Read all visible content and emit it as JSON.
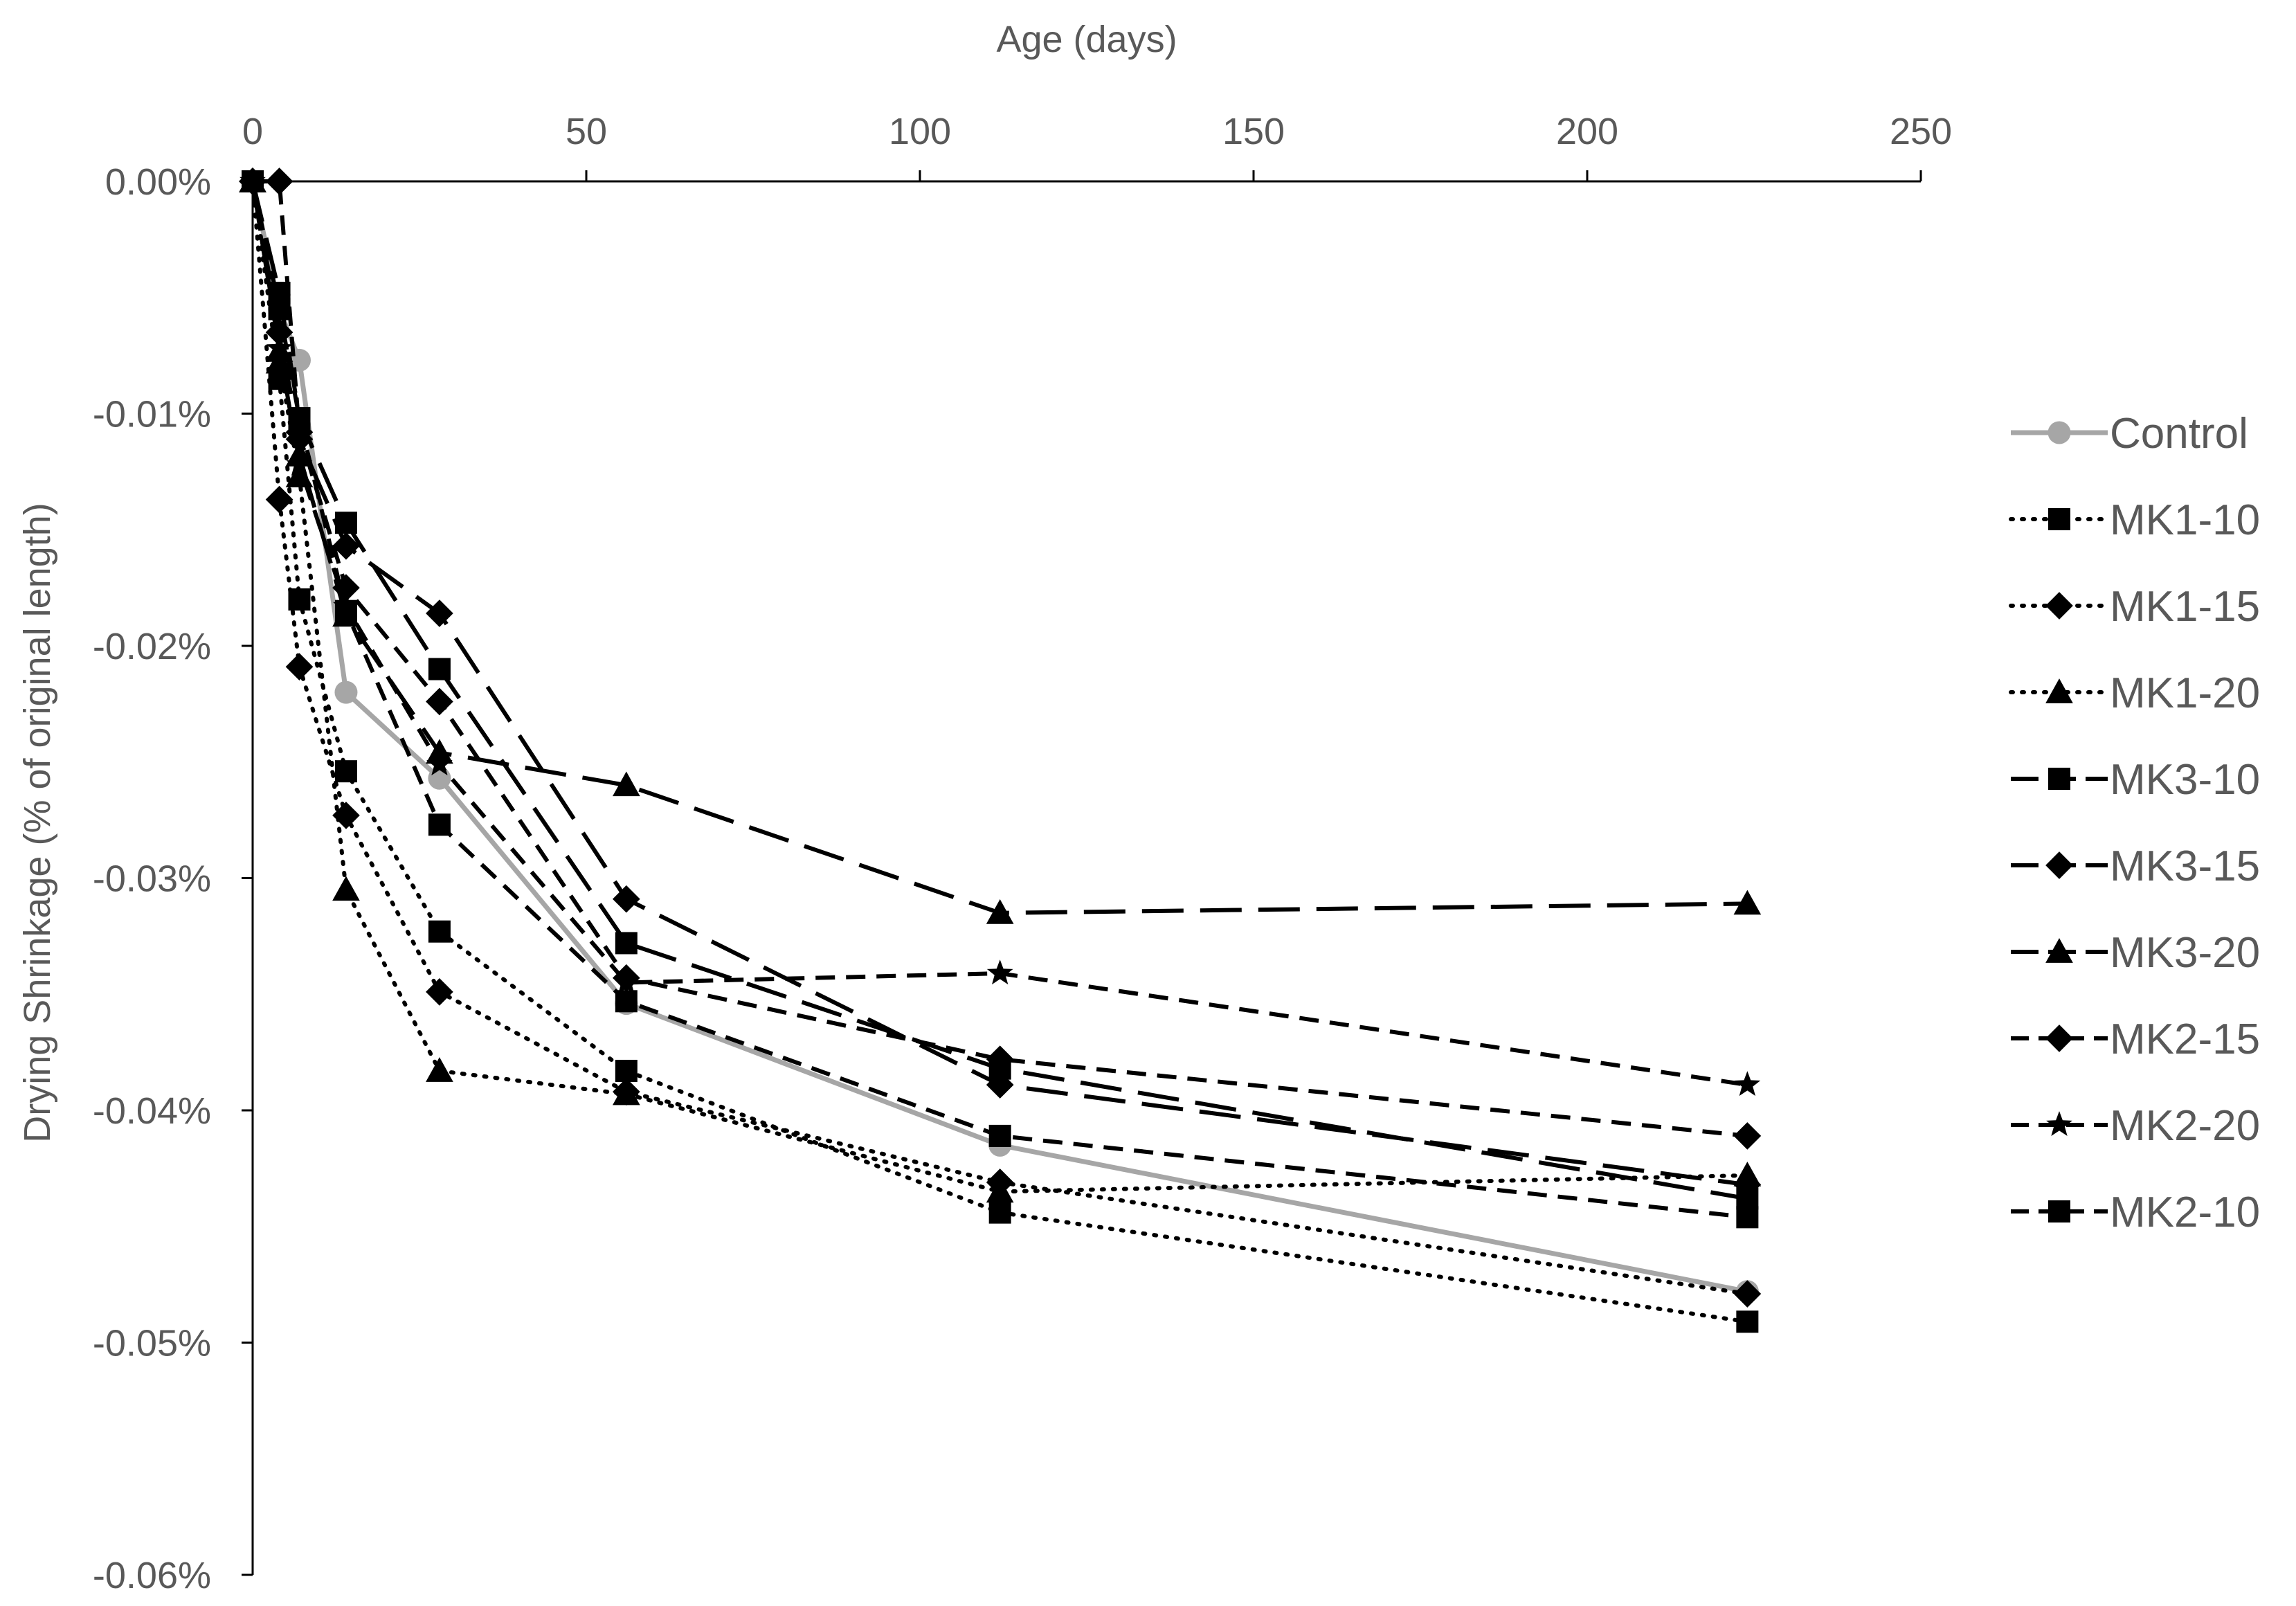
{
  "chart_data": {
    "type": "line",
    "title": "",
    "xlabel": "Age (days)",
    "ylabel": "Drying Shrinkage (% of original length)",
    "xlim": [
      0,
      250
    ],
    "ylim": [
      -0.06,
      0
    ],
    "x_ticks": [
      0,
      50,
      100,
      150,
      200,
      250
    ],
    "x_tick_labels": [
      "0",
      "50",
      "100",
      "150",
      "200",
      "250"
    ],
    "y_ticks": [
      0,
      -0.01,
      -0.02,
      -0.03,
      -0.04,
      -0.05,
      -0.06
    ],
    "y_tick_labels": [
      "0.00%",
      "-0.01%",
      "-0.02%",
      "-0.03%",
      "-0.04%",
      "-0.05%",
      "-0.06%"
    ],
    "x_axis_position": "top",
    "grid": false,
    "legend_position": "right",
    "series": [
      {
        "name": "Control",
        "color": "#a6a6a6",
        "line": "solid",
        "marker": "circle",
        "x": [
          0,
          4,
          7,
          14,
          28,
          56,
          112,
          224
        ],
        "y": [
          0,
          -0.0055,
          -0.0077,
          -0.022,
          -0.0257,
          -0.0354,
          -0.0415,
          -0.0478
        ]
      },
      {
        "name": "MK1-10",
        "color": "#000000",
        "line": "dotted",
        "marker": "square",
        "x": [
          0,
          4,
          7,
          14,
          28,
          56,
          112,
          224
        ],
        "y": [
          0,
          -0.0085,
          -0.018,
          -0.0254,
          -0.0323,
          -0.0383,
          -0.0444,
          -0.0491
        ]
      },
      {
        "name": "MK1-15",
        "color": "#000000",
        "line": "dotted",
        "marker": "diamond",
        "x": [
          0,
          4,
          7,
          14,
          28,
          56,
          112,
          224
        ],
        "y": [
          0,
          -0.0137,
          -0.0209,
          -0.0273,
          -0.0349,
          -0.0392,
          -0.0431,
          -0.0479
        ]
      },
      {
        "name": "MK1-20",
        "color": "#000000",
        "line": "dotted",
        "marker": "triangle",
        "x": [
          0,
          4,
          7,
          14,
          28,
          56,
          112,
          224
        ],
        "y": [
          0,
          -0.0078,
          -0.0127,
          -0.0305,
          -0.0383,
          -0.0393,
          -0.0435,
          -0.0428
        ]
      },
      {
        "name": "MK3-10",
        "color": "#000000",
        "line": "longdash",
        "marker": "square",
        "x": [
          0,
          4,
          7,
          14,
          28,
          56,
          112,
          224
        ],
        "y": [
          0,
          -0.0048,
          -0.0102,
          -0.0147,
          -0.021,
          -0.0328,
          -0.0382,
          -0.0438
        ]
      },
      {
        "name": "MK3-15",
        "color": "#000000",
        "line": "longdash",
        "marker": "diamond",
        "x": [
          0,
          4,
          7,
          14,
          28,
          56,
          112,
          224
        ],
        "y": [
          0,
          -0.0065,
          -0.0111,
          -0.0157,
          -0.0186,
          -0.0309,
          -0.0389,
          -0.0432
        ]
      },
      {
        "name": "MK3-20",
        "color": "#000000",
        "line": "longdash",
        "marker": "triangle",
        "x": [
          0,
          4,
          7,
          14,
          28,
          56,
          112,
          224
        ],
        "y": [
          0,
          -0.0073,
          -0.0118,
          -0.0187,
          -0.0246,
          -0.026,
          -0.0315,
          -0.0311
        ]
      },
      {
        "name": "MK2-15",
        "color": "#000000",
        "line": "dashed",
        "marker": "diamond",
        "x": [
          0,
          4,
          7,
          14,
          28,
          56,
          112,
          224
        ],
        "y": [
          0,
          0,
          -0.0108,
          -0.0175,
          -0.0224,
          -0.0343,
          -0.0378,
          -0.0411
        ]
      },
      {
        "name": "MK2-20",
        "color": "#000000",
        "line": "dashed",
        "marker": "star",
        "x": [
          0,
          4,
          7,
          14,
          28,
          56,
          112,
          224
        ],
        "y": [
          0,
          -0.0072,
          -0.0122,
          -0.0183,
          -0.0251,
          -0.0345,
          -0.0341,
          -0.0389
        ]
      },
      {
        "name": "MK2-10",
        "color": "#000000",
        "line": "dashed",
        "marker": "square",
        "x": [
          0,
          4,
          7,
          14,
          28,
          56,
          112,
          224
        ],
        "y": [
          0,
          -0.0055,
          -0.0102,
          -0.0185,
          -0.0277,
          -0.0353,
          -0.0411,
          -0.0446
        ]
      }
    ]
  }
}
